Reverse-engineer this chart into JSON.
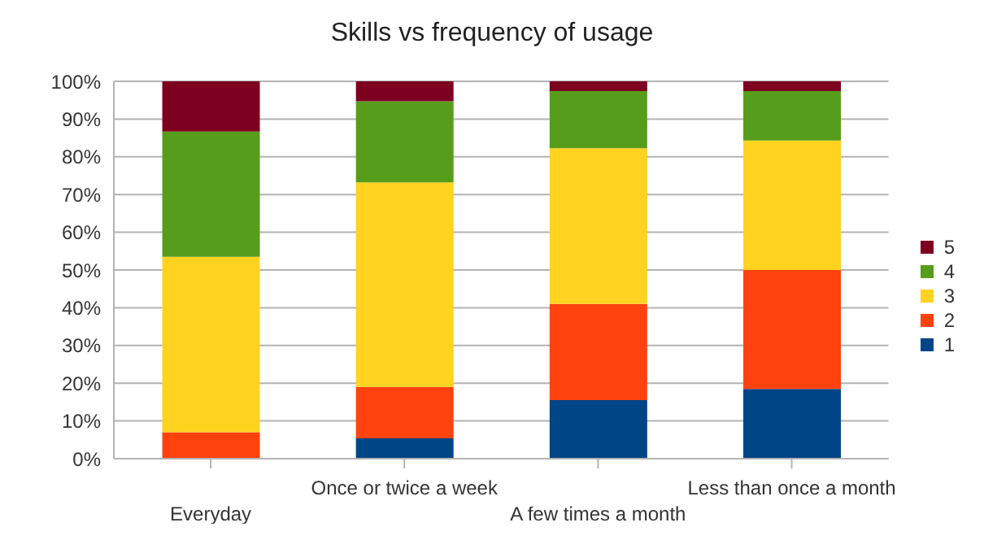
{
  "chart_data": {
    "type": "bar",
    "title": "Skills vs frequency of usage",
    "stacked": true,
    "categories": [
      "Everyday",
      "Once or twice a week",
      "A few times a month",
      "Less than once a month"
    ],
    "series": [
      {
        "name": "1",
        "color": "#004586",
        "values": [
          0,
          5.4,
          15.5,
          18.5
        ]
      },
      {
        "name": "2",
        "color": "#ff420e",
        "values": [
          7,
          13.6,
          25.5,
          31.5
        ]
      },
      {
        "name": "3",
        "color": "#ffd320",
        "values": [
          46.5,
          54.2,
          41.3,
          34.3
        ]
      },
      {
        "name": "4",
        "color": "#579d1c",
        "values": [
          33.2,
          21.5,
          15.1,
          13.1
        ]
      },
      {
        "name": "5",
        "color": "#7e0021",
        "values": [
          13.3,
          5.3,
          2.6,
          2.6
        ]
      }
    ],
    "ylim": [
      0,
      100
    ],
    "yticks": [
      {
        "value": 0,
        "label": "0%"
      },
      {
        "value": 10,
        "label": "10%"
      },
      {
        "value": 20,
        "label": "20%"
      },
      {
        "value": 30,
        "label": "30%"
      },
      {
        "value": 40,
        "label": "40%"
      },
      {
        "value": 50,
        "label": "50%"
      },
      {
        "value": 60,
        "label": "60%"
      },
      {
        "value": 70,
        "label": "70%"
      },
      {
        "value": 80,
        "label": "80%"
      },
      {
        "value": 90,
        "label": "90%"
      },
      {
        "value": 100,
        "label": "100%"
      }
    ],
    "grid": "y",
    "legend": "right"
  }
}
